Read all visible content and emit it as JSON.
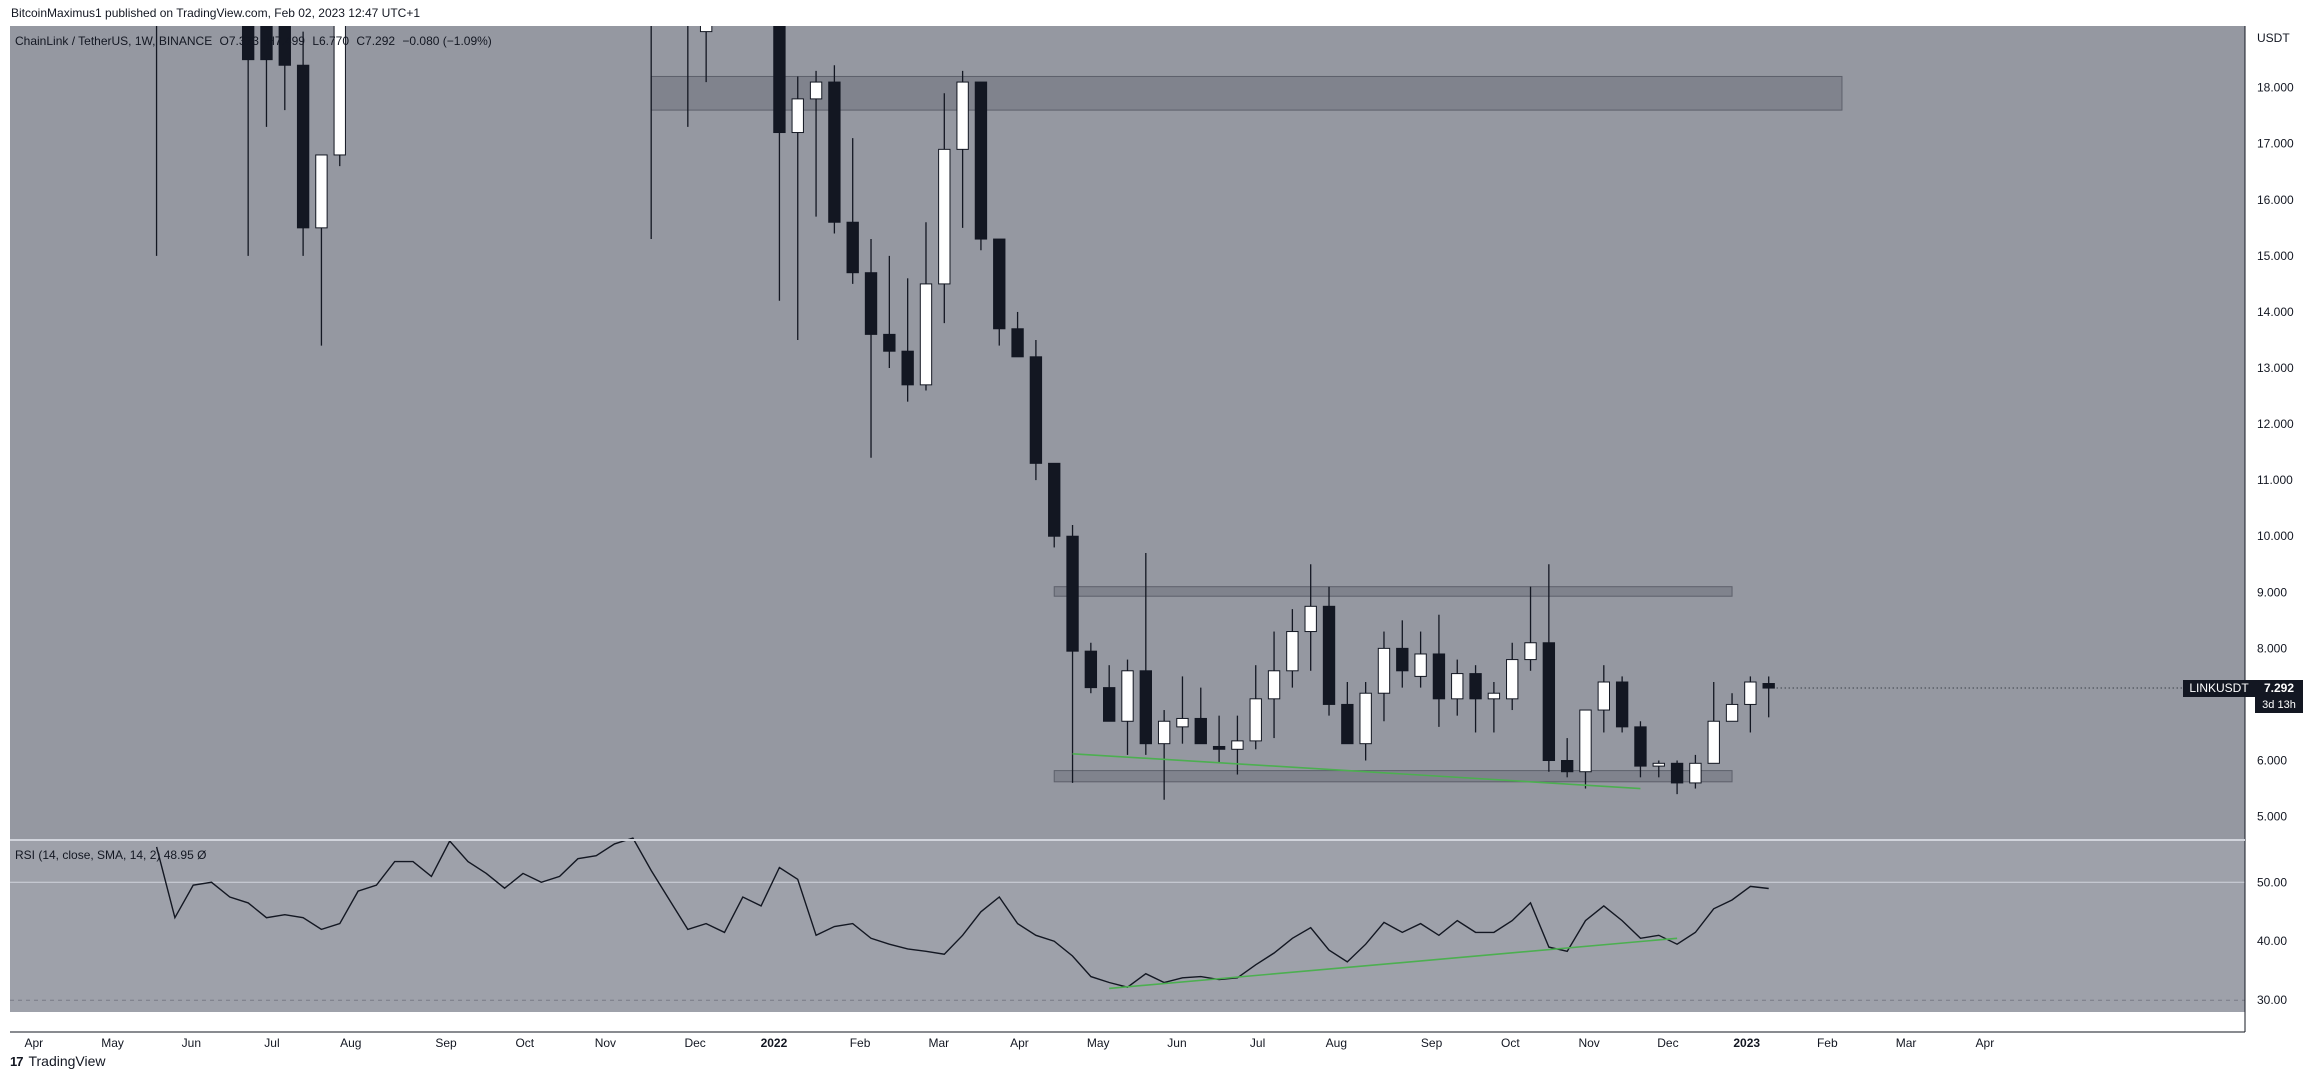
{
  "header": {
    "published": "BitcoinMaximus1 published on TradingView.com, Feb 02, 2023 12:47 UTC+1"
  },
  "legend": {
    "symbol": "ChainLink / TetherUS, 1W, BINANCE",
    "open": "O7.373",
    "high": "H7.499",
    "low": "L6.770",
    "close": "C7.292",
    "change": "−0.080 (−1.09%)"
  },
  "rsi_legend": {
    "label": "RSI (14, close, SMA, 14, 2)",
    "value": "48.95",
    "extra": "Ø"
  },
  "price_tag": {
    "symbol": "LINKUSDT",
    "price": "7.292",
    "countdown": "3d 13h"
  },
  "footer": {
    "brand": "TradingView"
  },
  "colors": {
    "background": "#ffffff",
    "pane": "#9598a1",
    "rsi_pane": "#9ea1aa",
    "up": "#ffffff",
    "down": "#131722",
    "zone": "#6f727d",
    "support_line": "#4caf50",
    "rsi_line": "#131722"
  },
  "chart_data": [
    {
      "type": "candlestick",
      "currency_label": "USDT",
      "y_ticks": [
        "18.000",
        "17.000",
        "16.000",
        "15.000",
        "14.000",
        "13.000",
        "12.000",
        "11.000",
        "10.000",
        "9.000",
        "8.000",
        "7.000",
        "6.000",
        "5.000"
      ],
      "ylim": [
        4.6,
        19.1
      ],
      "x_labels": [
        "Apr",
        "May",
        "Jun",
        "Jul",
        "Aug",
        "Sep",
        "Oct",
        "Nov",
        "Dec",
        "2022",
        "Feb",
        "Mar",
        "Apr",
        "May",
        "Jun",
        "Jul",
        "Aug",
        "Sep",
        "Oct",
        "Nov",
        "Dec",
        "2023",
        "Feb",
        "Mar",
        "Apr"
      ],
      "zones": [
        {
          "from": 17.6,
          "to": 18.2,
          "start_week": 34,
          "end_week": 99
        },
        {
          "from": 8.93,
          "to": 9.1,
          "start_week": 56,
          "end_week": 93
        },
        {
          "from": 5.62,
          "to": 5.82,
          "start_week": 56,
          "end_week": 93
        }
      ],
      "support_line": [
        {
          "week": 57,
          "value": 6.12
        },
        {
          "week": 88,
          "value": 5.5
        }
      ],
      "candles": [
        {
          "w": 7,
          "o": null,
          "h": 20.0,
          "l": 15.0,
          "c": null
        },
        {
          "w": 12,
          "o": 20.5,
          "h": 21.5,
          "l": 15.0,
          "c": 18.5
        },
        {
          "w": 13,
          "o": 20.0,
          "h": 21.0,
          "l": 17.3,
          "c": 18.5
        },
        {
          "w": 14,
          "o": 20.5,
          "h": 21.5,
          "l": 17.6,
          "c": 18.4
        },
        {
          "w": 15,
          "o": 18.4,
          "h": 19.0,
          "l": 15.0,
          "c": 15.5
        },
        {
          "w": 16,
          "o": 15.5,
          "h": 16.8,
          "l": 13.4,
          "c": 16.8
        },
        {
          "w": 17,
          "o": 16.8,
          "h": 21.5,
          "l": 16.6,
          "c": 21.0
        },
        {
          "w": 34,
          "o": null,
          "h": 20.0,
          "l": 15.3,
          "c": null
        },
        {
          "w": 36,
          "o": 19.2,
          "h": 20.5,
          "l": 17.3,
          "c": 19.4
        },
        {
          "w": 37,
          "o": 19.0,
          "h": 20.5,
          "l": 18.1,
          "c": 19.5
        },
        {
          "w": 41,
          "o": 20.5,
          "h": 21.0,
          "l": 14.2,
          "c": 17.2
        },
        {
          "w": 42,
          "o": 17.2,
          "h": 18.2,
          "l": 13.5,
          "c": 17.8
        },
        {
          "w": 43,
          "o": 17.8,
          "h": 18.3,
          "l": 15.7,
          "c": 18.1
        },
        {
          "w": 44,
          "o": 18.1,
          "h": 18.4,
          "l": 15.4,
          "c": 15.6
        },
        {
          "w": 45,
          "o": 15.6,
          "h": 17.1,
          "l": 14.5,
          "c": 14.7
        },
        {
          "w": 46,
          "o": 14.7,
          "h": 15.3,
          "l": 11.4,
          "c": 13.6
        },
        {
          "w": 47,
          "o": 13.6,
          "h": 15.0,
          "l": 13.0,
          "c": 13.3
        },
        {
          "w": 48,
          "o": 13.3,
          "h": 14.6,
          "l": 12.4,
          "c": 12.7
        },
        {
          "w": 49,
          "o": 12.7,
          "h": 15.6,
          "l": 12.6,
          "c": 14.5
        },
        {
          "w": 50,
          "o": 14.5,
          "h": 17.9,
          "l": 13.8,
          "c": 16.9
        },
        {
          "w": 51,
          "o": 16.9,
          "h": 18.3,
          "l": 15.5,
          "c": 18.1
        },
        {
          "w": 52,
          "o": 18.1,
          "h": 18.1,
          "l": 15.1,
          "c": 15.3
        },
        {
          "w": 53,
          "o": 15.3,
          "h": 15.3,
          "l": 13.4,
          "c": 13.7
        },
        {
          "w": 54,
          "o": 13.7,
          "h": 14.0,
          "l": 13.2,
          "c": 13.2
        },
        {
          "w": 55,
          "o": 13.2,
          "h": 13.5,
          "l": 11.0,
          "c": 11.3
        },
        {
          "w": 56,
          "o": 11.3,
          "h": 11.3,
          "l": 9.8,
          "c": 10.0
        },
        {
          "w": 57,
          "o": 10.0,
          "h": 10.2,
          "l": 5.6,
          "c": 7.95
        },
        {
          "w": 58,
          "o": 7.95,
          "h": 8.1,
          "l": 7.2,
          "c": 7.3
        },
        {
          "w": 59,
          "o": 7.3,
          "h": 7.7,
          "l": 6.7,
          "c": 6.7
        },
        {
          "w": 60,
          "o": 6.7,
          "h": 7.8,
          "l": 6.1,
          "c": 7.6
        },
        {
          "w": 61,
          "o": 7.6,
          "h": 9.7,
          "l": 6.1,
          "c": 6.3
        },
        {
          "w": 62,
          "o": 6.3,
          "h": 6.9,
          "l": 5.3,
          "c": 6.7
        },
        {
          "w": 63,
          "o": 6.6,
          "h": 7.5,
          "l": 6.3,
          "c": 6.75
        },
        {
          "w": 64,
          "o": 6.75,
          "h": 7.3,
          "l": 6.3,
          "c": 6.3
        },
        {
          "w": 65,
          "o": 6.25,
          "h": 6.8,
          "l": 5.95,
          "c": 6.2
        },
        {
          "w": 66,
          "o": 6.2,
          "h": 6.8,
          "l": 5.75,
          "c": 6.35
        },
        {
          "w": 67,
          "o": 6.35,
          "h": 7.7,
          "l": 6.2,
          "c": 7.1
        },
        {
          "w": 68,
          "o": 7.1,
          "h": 8.3,
          "l": 6.4,
          "c": 7.6
        },
        {
          "w": 69,
          "o": 7.6,
          "h": 8.7,
          "l": 7.3,
          "c": 8.3
        },
        {
          "w": 70,
          "o": 8.3,
          "h": 9.5,
          "l": 7.6,
          "c": 8.75
        },
        {
          "w": 71,
          "o": 8.75,
          "h": 9.1,
          "l": 6.8,
          "c": 7.0
        },
        {
          "w": 72,
          "o": 7.0,
          "h": 7.4,
          "l": 6.3,
          "c": 6.3
        },
        {
          "w": 73,
          "o": 6.3,
          "h": 7.4,
          "l": 6.0,
          "c": 7.2
        },
        {
          "w": 74,
          "o": 7.2,
          "h": 8.3,
          "l": 6.7,
          "c": 8.0
        },
        {
          "w": 75,
          "o": 8.0,
          "h": 8.5,
          "l": 7.3,
          "c": 7.6
        },
        {
          "w": 76,
          "o": 7.5,
          "h": 8.3,
          "l": 7.3,
          "c": 7.9
        },
        {
          "w": 77,
          "o": 7.9,
          "h": 8.6,
          "l": 6.6,
          "c": 7.1
        },
        {
          "w": 78,
          "o": 7.1,
          "h": 7.8,
          "l": 6.8,
          "c": 7.55
        },
        {
          "w": 79,
          "o": 7.55,
          "h": 7.7,
          "l": 6.5,
          "c": 7.1
        },
        {
          "w": 80,
          "o": 7.1,
          "h": 7.4,
          "l": 6.5,
          "c": 7.2
        },
        {
          "w": 81,
          "o": 7.1,
          "h": 8.1,
          "l": 6.9,
          "c": 7.8
        },
        {
          "w": 82,
          "o": 7.8,
          "h": 9.1,
          "l": 7.6,
          "c": 8.1
        },
        {
          "w": 83,
          "o": 8.1,
          "h": 9.5,
          "l": 5.8,
          "c": 6.0
        },
        {
          "w": 84,
          "o": 6.0,
          "h": 6.4,
          "l": 5.7,
          "c": 5.8
        },
        {
          "w": 85,
          "o": 5.8,
          "h": 6.9,
          "l": 5.5,
          "c": 6.9
        },
        {
          "w": 86,
          "o": 6.9,
          "h": 7.7,
          "l": 6.5,
          "c": 7.4
        },
        {
          "w": 87,
          "o": 7.4,
          "h": 7.5,
          "l": 6.5,
          "c": 6.6
        },
        {
          "w": 88,
          "o": 6.6,
          "h": 6.7,
          "l": 5.7,
          "c": 5.9
        },
        {
          "w": 89,
          "o": 5.9,
          "h": 6.0,
          "l": 5.7,
          "c": 5.95
        },
        {
          "w": 90,
          "o": 5.95,
          "h": 6.0,
          "l": 5.4,
          "c": 5.6
        },
        {
          "w": 91,
          "o": 5.6,
          "h": 6.1,
          "l": 5.5,
          "c": 5.95
        },
        {
          "w": 92,
          "o": 5.95,
          "h": 7.4,
          "l": 5.95,
          "c": 6.7
        },
        {
          "w": 93,
          "o": 6.7,
          "h": 7.2,
          "l": 6.7,
          "c": 7.0
        },
        {
          "w": 94,
          "o": 7.0,
          "h": 7.5,
          "l": 6.5,
          "c": 7.4
        },
        {
          "w": 95,
          "o": 7.373,
          "h": 7.499,
          "l": 6.77,
          "c": 7.292
        }
      ]
    },
    {
      "type": "line",
      "name": "RSI (14, close, SMA, 14, 2)",
      "y_ticks": [
        "50.00",
        "40.00",
        "30.00"
      ],
      "ylim": [
        28,
        57
      ],
      "levels": [
        50,
        30
      ],
      "values": [
        [
          7,
          56
        ],
        [
          8,
          44
        ],
        [
          9,
          49.5
        ],
        [
          10,
          50
        ],
        [
          11,
          47.5
        ],
        [
          12,
          46.5
        ],
        [
          13,
          44
        ],
        [
          14,
          44.5
        ],
        [
          15,
          44
        ],
        [
          16,
          42
        ],
        [
          17,
          43
        ],
        [
          18,
          48.5
        ],
        [
          19,
          49.5
        ],
        [
          20,
          53.5
        ],
        [
          21,
          53.5
        ],
        [
          22,
          51
        ],
        [
          23,
          57
        ],
        [
          24,
          53.5
        ],
        [
          25,
          51.5
        ],
        [
          26,
          49
        ],
        [
          27,
          51.5
        ],
        [
          28,
          50
        ],
        [
          29,
          51
        ],
        [
          30,
          54
        ],
        [
          31,
          54.5
        ],
        [
          32,
          56.5
        ],
        [
          33,
          57.5
        ],
        [
          34,
          52
        ],
        [
          35,
          47
        ],
        [
          36,
          42
        ],
        [
          37,
          43
        ],
        [
          38,
          41.5
        ],
        [
          39,
          47.5
        ],
        [
          40,
          46
        ],
        [
          41,
          52.5
        ],
        [
          42,
          50.5
        ],
        [
          43,
          41
        ],
        [
          44,
          42.5
        ],
        [
          45,
          43
        ],
        [
          46,
          40.5
        ],
        [
          47,
          39.5
        ],
        [
          48,
          38.7
        ],
        [
          49,
          38.3
        ],
        [
          50,
          37.8
        ],
        [
          51,
          41
        ],
        [
          52,
          45
        ],
        [
          53,
          47.5
        ],
        [
          54,
          43
        ],
        [
          55,
          41
        ],
        [
          56,
          40
        ],
        [
          57,
          37.5
        ],
        [
          58,
          34
        ],
        [
          59,
          33
        ],
        [
          60,
          32.2
        ],
        [
          61,
          34.5
        ],
        [
          62,
          33
        ],
        [
          63,
          33.8
        ],
        [
          64,
          34
        ],
        [
          65,
          33.5
        ],
        [
          66,
          33.8
        ],
        [
          67,
          36
        ],
        [
          68,
          38
        ],
        [
          69,
          40.5
        ],
        [
          70,
          42.3
        ],
        [
          71,
          38.5
        ],
        [
          72,
          36.5
        ],
        [
          73,
          39.5
        ],
        [
          74,
          43.2
        ],
        [
          75,
          41.5
        ],
        [
          76,
          43
        ],
        [
          77,
          41
        ],
        [
          78,
          43.5
        ],
        [
          79,
          41.5
        ],
        [
          80,
          41.5
        ],
        [
          81,
          43.5
        ],
        [
          82,
          46.5
        ],
        [
          83,
          39
        ],
        [
          84,
          38.3
        ],
        [
          85,
          43.5
        ],
        [
          86,
          46
        ],
        [
          87,
          43.5
        ],
        [
          88,
          40.5
        ],
        [
          89,
          41
        ],
        [
          90,
          39.5
        ],
        [
          91,
          41.5
        ],
        [
          92,
          45.5
        ],
        [
          93,
          47
        ],
        [
          94,
          49.3
        ],
        [
          95,
          48.95
        ]
      ],
      "trend_line": [
        {
          "week": 59,
          "value": 32.0
        },
        {
          "week": 90,
          "value": 40.5
        }
      ]
    }
  ]
}
